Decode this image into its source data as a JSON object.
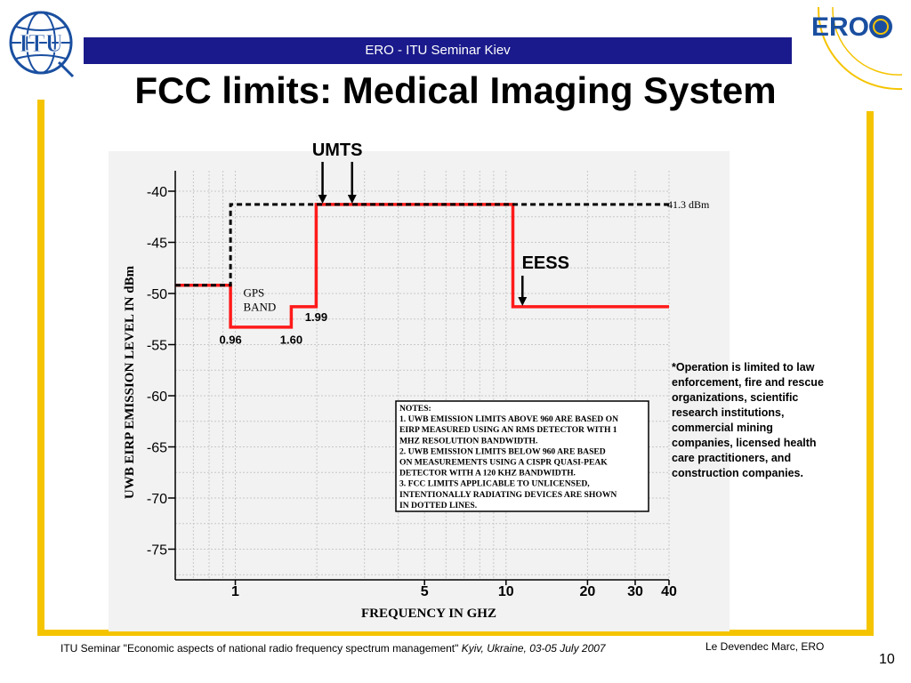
{
  "header": {
    "banner_text": "ERO - ITU Seminar Kiev",
    "title": "FCC limits: Medical Imaging System",
    "itu_logo_text": "ITU",
    "ero_logo_text": "ERO"
  },
  "chart_data": {
    "type": "line",
    "xlabel": "FREQUENCY IN GHZ",
    "ylabel": "UWB EIRP EMISSION LEVEL IN dBm",
    "xscale": "log",
    "xlim": [
      0.6,
      40
    ],
    "ylim": [
      -78,
      -38
    ],
    "x_ticks": [
      1,
      5,
      10,
      20,
      30,
      40
    ],
    "x_tick_labels": [
      "1",
      "5",
      "10",
      "20",
      "30",
      "40"
    ],
    "y_ticks": [
      -40,
      -45,
      -50,
      -55,
      -60,
      -65,
      -70,
      -75
    ],
    "y_tick_labels": [
      "-40",
      "-45",
      "-50",
      "-55",
      "-60",
      "-65",
      "-70",
      "-75"
    ],
    "grid": true,
    "series": [
      {
        "style": "solid",
        "color": "#ff1a1a",
        "points": [
          [
            0.6,
            -49.2
          ],
          [
            0.96,
            -49.2
          ],
          [
            0.96,
            -53.3
          ],
          [
            1.61,
            -53.3
          ],
          [
            1.61,
            -51.3
          ],
          [
            1.99,
            -51.3
          ],
          [
            1.99,
            -41.3
          ],
          [
            10.6,
            -41.3
          ],
          [
            10.6,
            -51.3
          ],
          [
            40,
            -51.3
          ]
        ]
      },
      {
        "style": "dashed",
        "color": "#000000",
        "points": [
          [
            0.6,
            -49.2
          ],
          [
            0.96,
            -49.2
          ],
          [
            0.96,
            -41.3
          ],
          [
            40,
            -41.3
          ]
        ]
      }
    ],
    "annotations": {
      "line_level": "-41.3 dBm",
      "freq_labels": [
        {
          "text": "0.96",
          "x": 0.96,
          "y": -54.2
        },
        {
          "text": "1.60",
          "x": 1.61,
          "y": -54.2
        },
        {
          "text": "1.99",
          "x": 1.99,
          "y": -52.0
        }
      ],
      "gps_band": [
        "GPS",
        "BAND"
      ],
      "umts_label": "UMTS",
      "umts_arrow_freqs": [
        2.1,
        2.7
      ],
      "eess_label": "EESS",
      "eess_arrow_freq": 11.5,
      "notes": [
        "NOTES:",
        "1.  UWB EMISSION LIMITS ABOVE 960 ARE BASED ON",
        "EIRP MEASURED USING AN RMS DETECTOR WITH 1",
        "MHZ RESOLUTION BANDWIDTH.",
        "2.  UWB EMISSION LIMITS BELOW 960 ARE BASED",
        "ON MEASUREMENTS USING A CISPR QUASI-PEAK",
        "DETECTOR WITH A 120 KHZ BANDWIDTH.",
        "3.  FCC LIMITS APPLICABLE TO UNLICENSED,",
        "INTENTIONALLY RADIATING  DEVICES ARE SHOWN",
        "IN DOTTED LINES."
      ]
    }
  },
  "side_note": {
    "lines": [
      "*Operation is limited to law",
      "enforcement, fire and rescue",
      "organizations, scientific",
      "research institutions,",
      "commercial mining",
      "companies, licensed health",
      "care practitioners, and",
      "construction companies."
    ]
  },
  "footer": {
    "seminar": "ITU Seminar  \"Economic aspects of national radio frequency spectrum management\"",
    "location": "Kyiv, Ukraine, 03-05 July 2007",
    "author": "Le Devendec Marc, ERO",
    "page": "10"
  }
}
